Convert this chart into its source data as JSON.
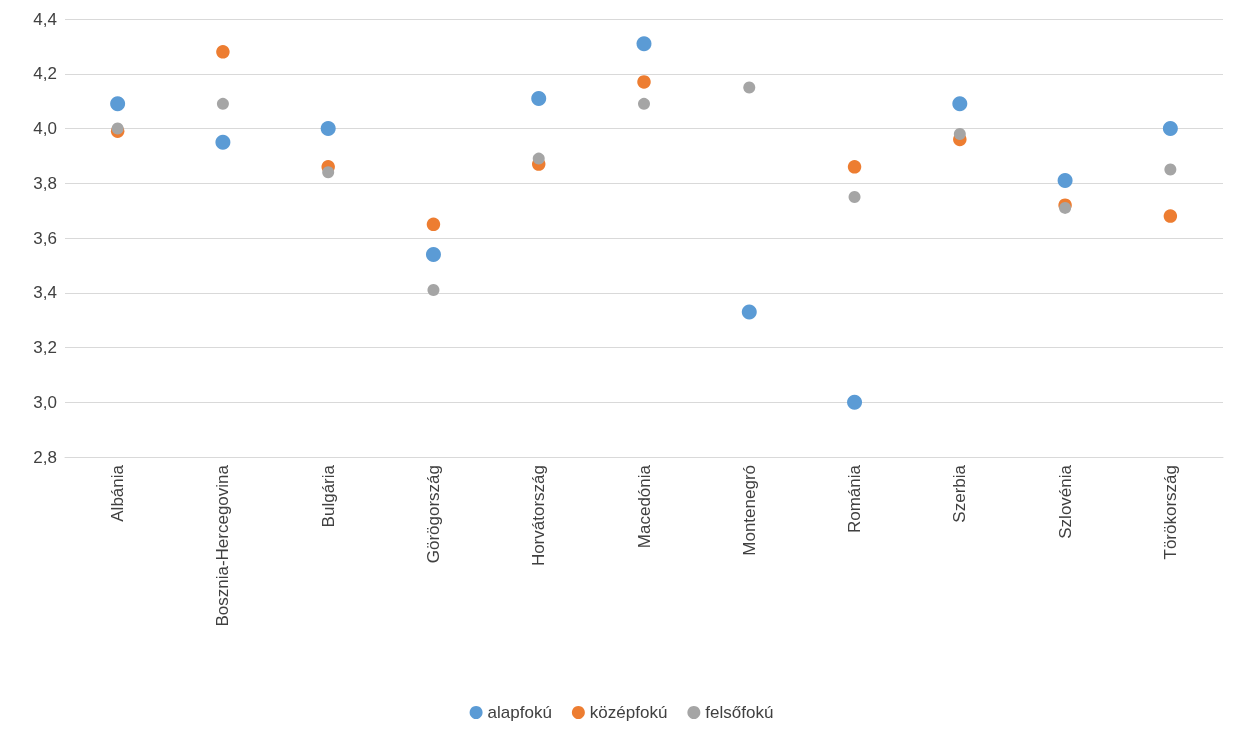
{
  "chart_data": {
    "type": "scatter",
    "categories": [
      "Albánia",
      "Bosznia-Hercegovina",
      "Bulgária",
      "Görögország",
      "Horvátország",
      "Macedónia",
      "Montenegró",
      "Románia",
      "Szerbia",
      "Szlovénia",
      "Törökország"
    ],
    "series": [
      {
        "name": "alapfokú",
        "color": "#5b9bd5",
        "values": [
          4.09,
          3.95,
          4.0,
          3.54,
          4.11,
          4.31,
          3.33,
          3.0,
          4.09,
          3.81,
          4.0
        ]
      },
      {
        "name": "középfokú",
        "color": "#ed7d31",
        "values": [
          3.99,
          4.28,
          3.86,
          3.65,
          3.87,
          4.17,
          null,
          3.86,
          3.96,
          3.72,
          3.68
        ]
      },
      {
        "name": "felsőfokú",
        "color": "#a5a5a5",
        "values": [
          4.0,
          4.09,
          3.84,
          3.41,
          3.89,
          4.09,
          4.15,
          3.75,
          3.98,
          3.71,
          3.85
        ]
      }
    ],
    "ylim": [
      2.8,
      4.4
    ],
    "yticks": [
      {
        "value": 2.8,
        "label": "2,8"
      },
      {
        "value": 3.0,
        "label": "3,0"
      },
      {
        "value": 3.2,
        "label": "3,2"
      },
      {
        "value": 3.4,
        "label": "3,4"
      },
      {
        "value": 3.6,
        "label": "3,6"
      },
      {
        "value": 3.8,
        "label": "3,8"
      },
      {
        "value": 4.0,
        "label": "4,0"
      },
      {
        "value": 4.2,
        "label": "4,2"
      },
      {
        "value": 4.4,
        "label": "4,4"
      }
    ],
    "grid": "y",
    "legend": "bottom",
    "marker": "circle"
  }
}
